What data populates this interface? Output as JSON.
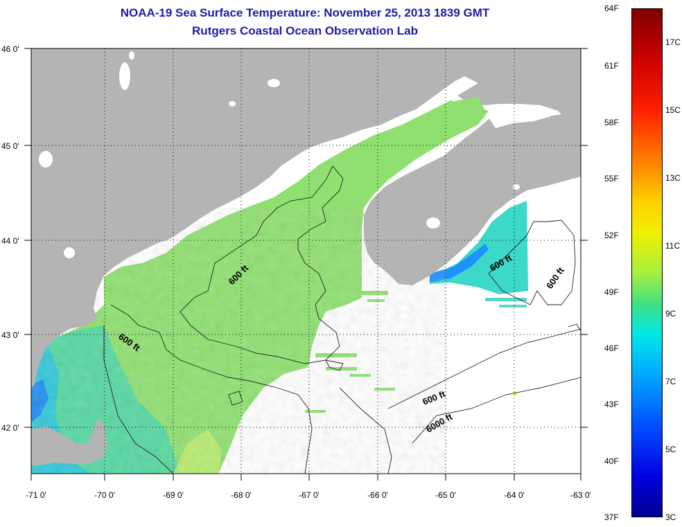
{
  "title": {
    "line1": "NOAA-19 Sea Surface Temperature:  November 25, 2013 1839 GMT",
    "line2": "Rutgers Coastal Ocean Observation Lab"
  },
  "axes": {
    "lat_labels": [
      "46 0'",
      "45 0'",
      "44 0'",
      "43 0'",
      "42 0'"
    ],
    "lon_labels": [
      "-71 0'",
      "-70 0'",
      "-69 0'",
      "-68 0'",
      "-67 0'",
      "-66 0'",
      "-65 0'",
      "-64 0'",
      "-63 0'"
    ]
  },
  "contours": {
    "labels": [
      "600 ft",
      "600 ft",
      "600 ft",
      "600 ft",
      "600 ft",
      "6000 ft"
    ]
  },
  "colorbar": {
    "fahrenheit": [
      "64F",
      "61F",
      "58F",
      "55F",
      "52F",
      "49F",
      "46F",
      "43F",
      "40F",
      "37F"
    ],
    "celsius": [
      "17C",
      "15C",
      "13C",
      "11C",
      "9C",
      "7C",
      "5C",
      "3C"
    ]
  },
  "colors": {
    "land": "#b4b4b4",
    "no_data": "#ffffff",
    "title": "#1c1ca8",
    "sst_main": "#8fe070",
    "sst_mid": "#55d8a0",
    "sst_cool": "#30c8d8"
  }
}
